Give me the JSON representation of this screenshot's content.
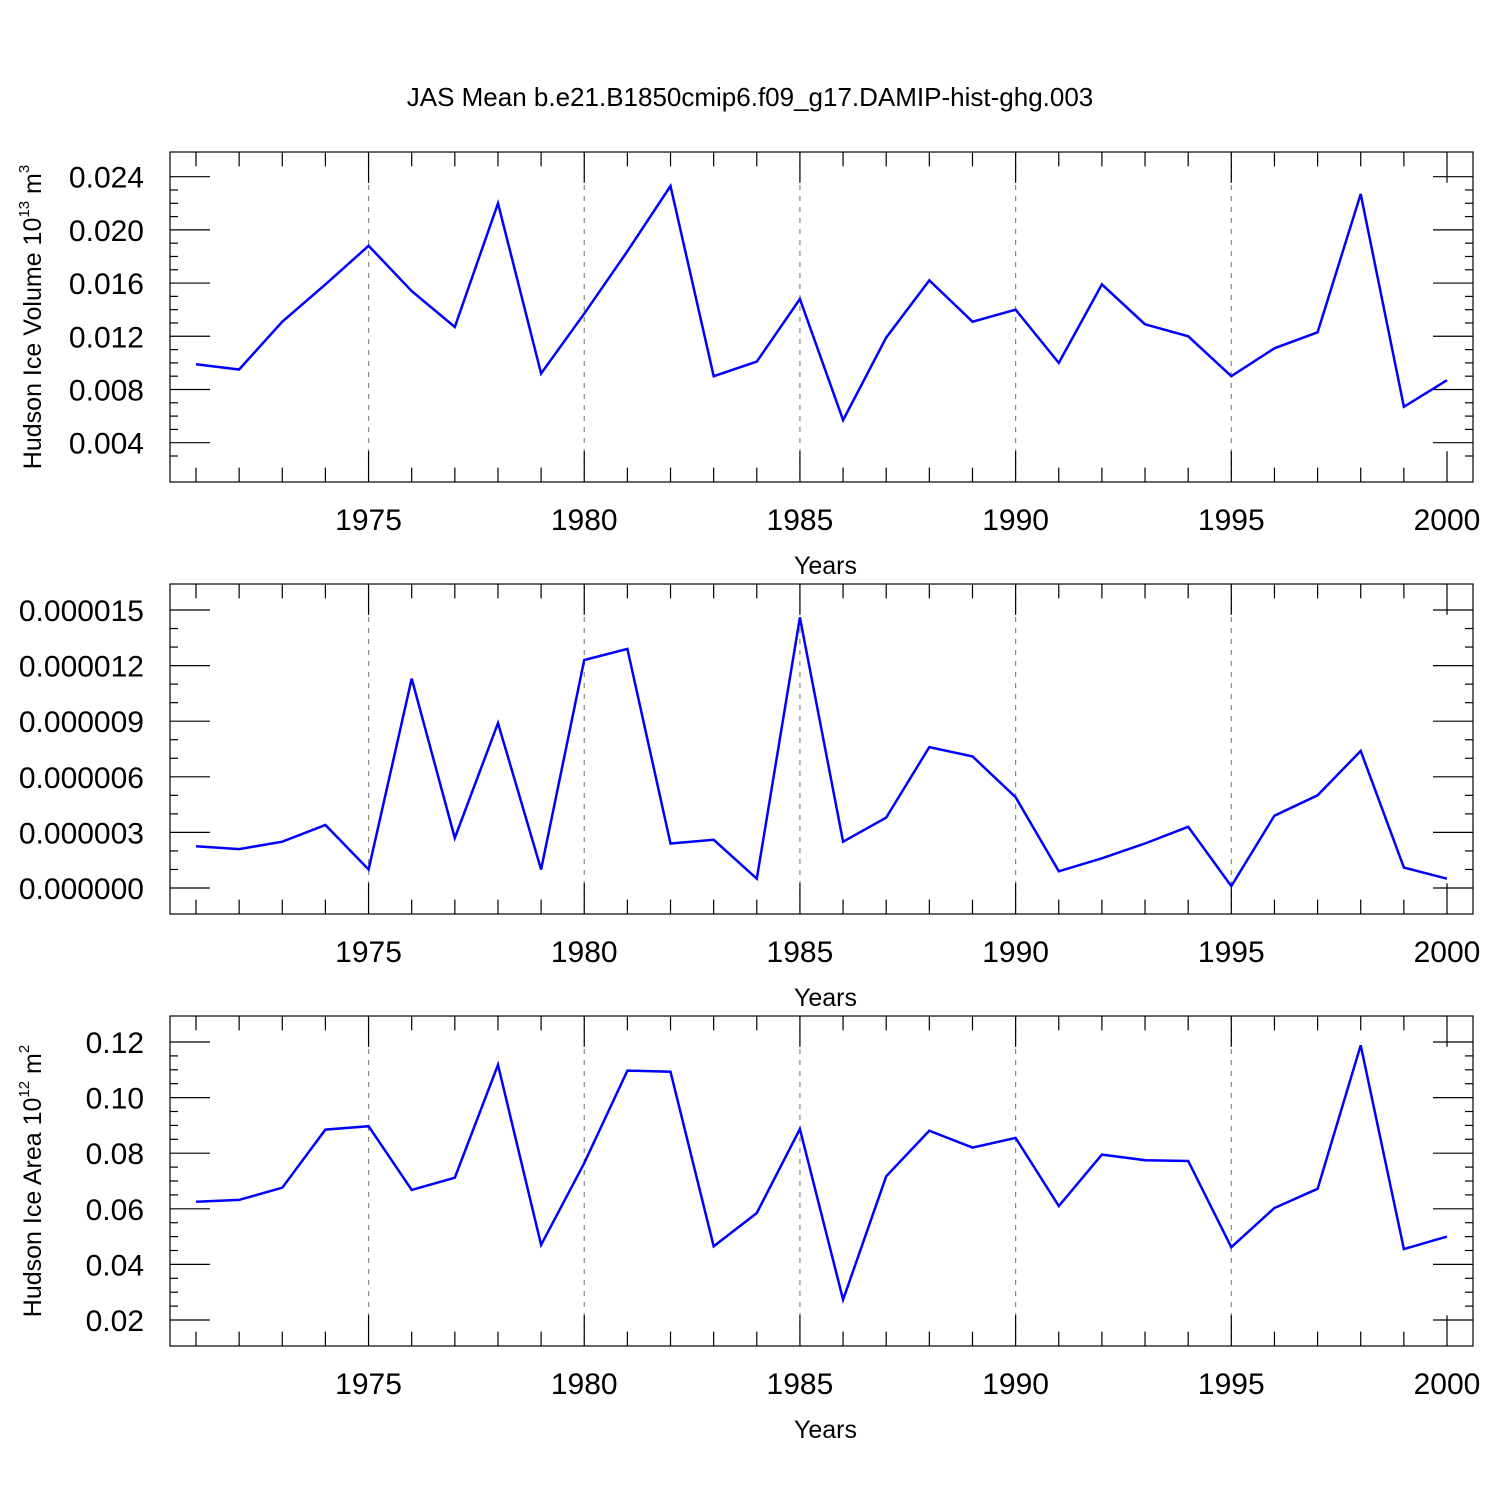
{
  "figure": {
    "title": "JAS Mean b.e21.B1850cmip6.f09_g17.DAMIP-hist-ghg.003"
  },
  "chart_data": [
    {
      "type": "line",
      "title": "",
      "xlabel": "Years",
      "ylabel": {
        "text": "Hudson Ice Volume 10",
        "sup1": "13",
        "mid": " m",
        "sup2": "3"
      },
      "xlim": [
        1971,
        2000
      ],
      "ylim": [
        0.003,
        0.0239
      ],
      "x_ticks": [
        1975,
        1980,
        1985,
        1990,
        1995,
        2000
      ],
      "y_ticks": [
        0.004,
        0.008,
        0.012,
        0.016,
        0.02,
        0.024
      ],
      "y_tick_labels": [
        "0.004",
        "0.008",
        "0.012",
        "0.016",
        "0.020",
        "0.024"
      ],
      "y_minor_step": 0.001,
      "grid_x": true,
      "color": "#0000ff",
      "x": [
        1971,
        1972,
        1973,
        1974,
        1975,
        1976,
        1977,
        1978,
        1979,
        1980,
        1981,
        1982,
        1983,
        1984,
        1985,
        1986,
        1987,
        1988,
        1989,
        1990,
        1991,
        1992,
        1993,
        1994,
        1995,
        1996,
        1997,
        1998,
        1999,
        2000
      ],
      "values": [
        0.0099,
        0.0095,
        0.0131,
        0.0159,
        0.0188,
        0.0154,
        0.0127,
        0.022,
        0.0092,
        0.0137,
        0.0184,
        0.0233,
        0.009,
        0.0101,
        0.0148,
        0.0057,
        0.0119,
        0.0162,
        0.0131,
        0.014,
        0.01,
        0.0159,
        0.0129,
        0.012,
        0.009,
        0.0111,
        0.0123,
        0.0227,
        0.0067,
        0.0087
      ]
    },
    {
      "type": "line",
      "title": "",
      "xlabel": "Years",
      "ylabel": {
        "text": "",
        "sup1": "",
        "mid": "",
        "sup2": ""
      },
      "xlim": [
        1971,
        2000
      ],
      "ylim": [
        0.0,
        1.5e-05
      ],
      "x_ticks": [
        1975,
        1980,
        1985,
        1990,
        1995,
        2000
      ],
      "y_ticks": [
        0.0,
        3e-06,
        6e-06,
        9e-06,
        1.2e-05,
        1.5e-05
      ],
      "y_tick_labels": [
        "0.000000",
        "0.000003",
        "0.000006",
        "0.000009",
        "0.000012",
        "0.000015"
      ],
      "y_minor_step": 1e-06,
      "grid_x": true,
      "color": "#0000ff",
      "x": [
        1971,
        1972,
        1973,
        1974,
        1975,
        1976,
        1977,
        1978,
        1979,
        1980,
        1981,
        1982,
        1983,
        1984,
        1985,
        1986,
        1987,
        1988,
        1989,
        1990,
        1991,
        1992,
        1993,
        1994,
        1995,
        1996,
        1997,
        1998,
        1999,
        2000
      ],
      "values": [
        2.25e-06,
        2.1e-06,
        2.5e-06,
        3.4e-06,
        1e-06,
        1.13e-05,
        2.7e-06,
        8.9e-06,
        1e-06,
        1.23e-05,
        1.29e-05,
        2.4e-06,
        2.6e-06,
        5e-07,
        1.46e-05,
        2.5e-06,
        3.8e-06,
        7.6e-06,
        7.1e-06,
        4.9e-06,
        9e-07,
        1.6e-06,
        2.4e-06,
        3.3e-06,
        1e-07,
        3.9e-06,
        5e-06,
        7.4e-06,
        1.1e-06,
        5e-07
      ]
    },
    {
      "type": "line",
      "title": "",
      "xlabel": "Years",
      "ylabel": {
        "text": "Hudson Ice Area 10",
        "sup1": "12",
        "mid": " m",
        "sup2": "2"
      },
      "xlim": [
        1971,
        2000
      ],
      "ylim": [
        0.02,
        0.12
      ],
      "x_ticks": [
        1975,
        1980,
        1985,
        1990,
        1995,
        2000
      ],
      "y_ticks": [
        0.02,
        0.04,
        0.06,
        0.08,
        0.1,
        0.12
      ],
      "y_tick_labels": [
        "0.02",
        "0.04",
        "0.06",
        "0.08",
        "0.10",
        "0.12"
      ],
      "y_minor_step": 0.005,
      "grid_x": true,
      "color": "#0000ff",
      "x": [
        1971,
        1972,
        1973,
        1974,
        1975,
        1976,
        1977,
        1978,
        1979,
        1980,
        1981,
        1982,
        1983,
        1984,
        1985,
        1986,
        1987,
        1988,
        1989,
        1990,
        1991,
        1992,
        1993,
        1994,
        1995,
        1996,
        1997,
        1998,
        1999,
        2000
      ],
      "values": [
        0.0625,
        0.0632,
        0.0676,
        0.0885,
        0.0897,
        0.0668,
        0.0712,
        0.1118,
        0.047,
        0.0764,
        0.1097,
        0.1093,
        0.0465,
        0.0585,
        0.0887,
        0.0273,
        0.0717,
        0.0881,
        0.082,
        0.0855,
        0.061,
        0.0795,
        0.0775,
        0.0772,
        0.0462,
        0.0603,
        0.0672,
        0.1188,
        0.0455,
        0.05
      ]
    }
  ]
}
